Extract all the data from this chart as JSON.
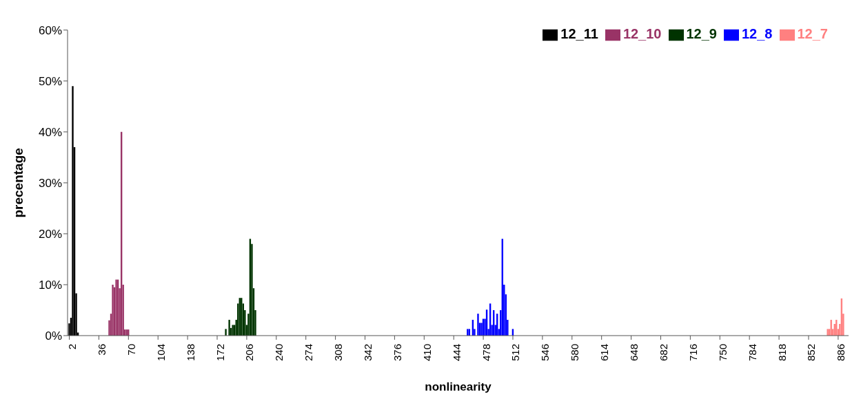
{
  "chart_data": {
    "type": "bar",
    "xlabel": "nonlinearity",
    "ylabel": "precentage",
    "xlim": [
      0,
      898
    ],
    "xticks": [
      2,
      36,
      70,
      104,
      138,
      172,
      206,
      240,
      274,
      308,
      342,
      376,
      410,
      444,
      478,
      512,
      546,
      580,
      614,
      648,
      682,
      716,
      750,
      784,
      818,
      852,
      886
    ],
    "ylim": [
      0,
      60
    ],
    "yticks": [
      {
        "value": 0,
        "label": "0%"
      },
      {
        "value": 10,
        "label": "10%"
      },
      {
        "value": 20,
        "label": "20%"
      },
      {
        "value": 30,
        "label": "30%"
      },
      {
        "value": 40,
        "label": "40%"
      },
      {
        "value": 50,
        "label": "50%"
      },
      {
        "value": 60,
        "label": "60%"
      }
    ],
    "grid": false,
    "legend": "top right",
    "series": [
      {
        "name": "12_11",
        "color": "#000000",
        "x": [
          2,
          4,
          6,
          8,
          10,
          12
        ],
        "values": [
          2.4,
          3.5,
          49,
          37,
          8.3,
          0.6
        ]
      },
      {
        "name": "12_10",
        "color": "#993366",
        "x": [
          48,
          50,
          52,
          54,
          56,
          58,
          60,
          62,
          64,
          66,
          68,
          70
        ],
        "values": [
          3,
          4.3,
          10,
          9.5,
          11,
          11,
          9.3,
          40,
          10,
          1.2,
          1.2,
          1.2
        ]
      },
      {
        "name": "12_9",
        "color": "#003300",
        "x": [
          182,
          186,
          188,
          190,
          192,
          194,
          196,
          198,
          200,
          202,
          204,
          206,
          208,
          210,
          212,
          214,
          216
        ],
        "values": [
          1.3,
          3.1,
          1.5,
          2.1,
          2.1,
          3.1,
          6.3,
          7.4,
          7.4,
          6.3,
          5,
          2.1,
          4.3,
          19,
          18,
          9.3,
          5
        ]
      },
      {
        "name": "12_8",
        "color": "#0000ff",
        "x": [
          460,
          462,
          466,
          468,
          472,
          474,
          476,
          478,
          480,
          482,
          484,
          486,
          488,
          490,
          492,
          494,
          496,
          498,
          500,
          502,
          504,
          506,
          512
        ],
        "values": [
          1.3,
          1.3,
          3.1,
          1.3,
          4.3,
          2.5,
          2.5,
          3.3,
          3.3,
          5.1,
          1.3,
          6.3,
          2.1,
          5,
          2.1,
          4.3,
          1.3,
          5,
          19,
          10,
          8.1,
          3.1,
          1.3
        ]
      },
      {
        "name": "12_7",
        "color": "#ff8080",
        "x": [
          874,
          876,
          878,
          880,
          882,
          884,
          886,
          888,
          890,
          892
        ],
        "values": [
          1.3,
          1.3,
          3.1,
          1.3,
          2.3,
          3.1,
          1.3,
          2.3,
          7.3,
          4.3
        ]
      }
    ]
  }
}
